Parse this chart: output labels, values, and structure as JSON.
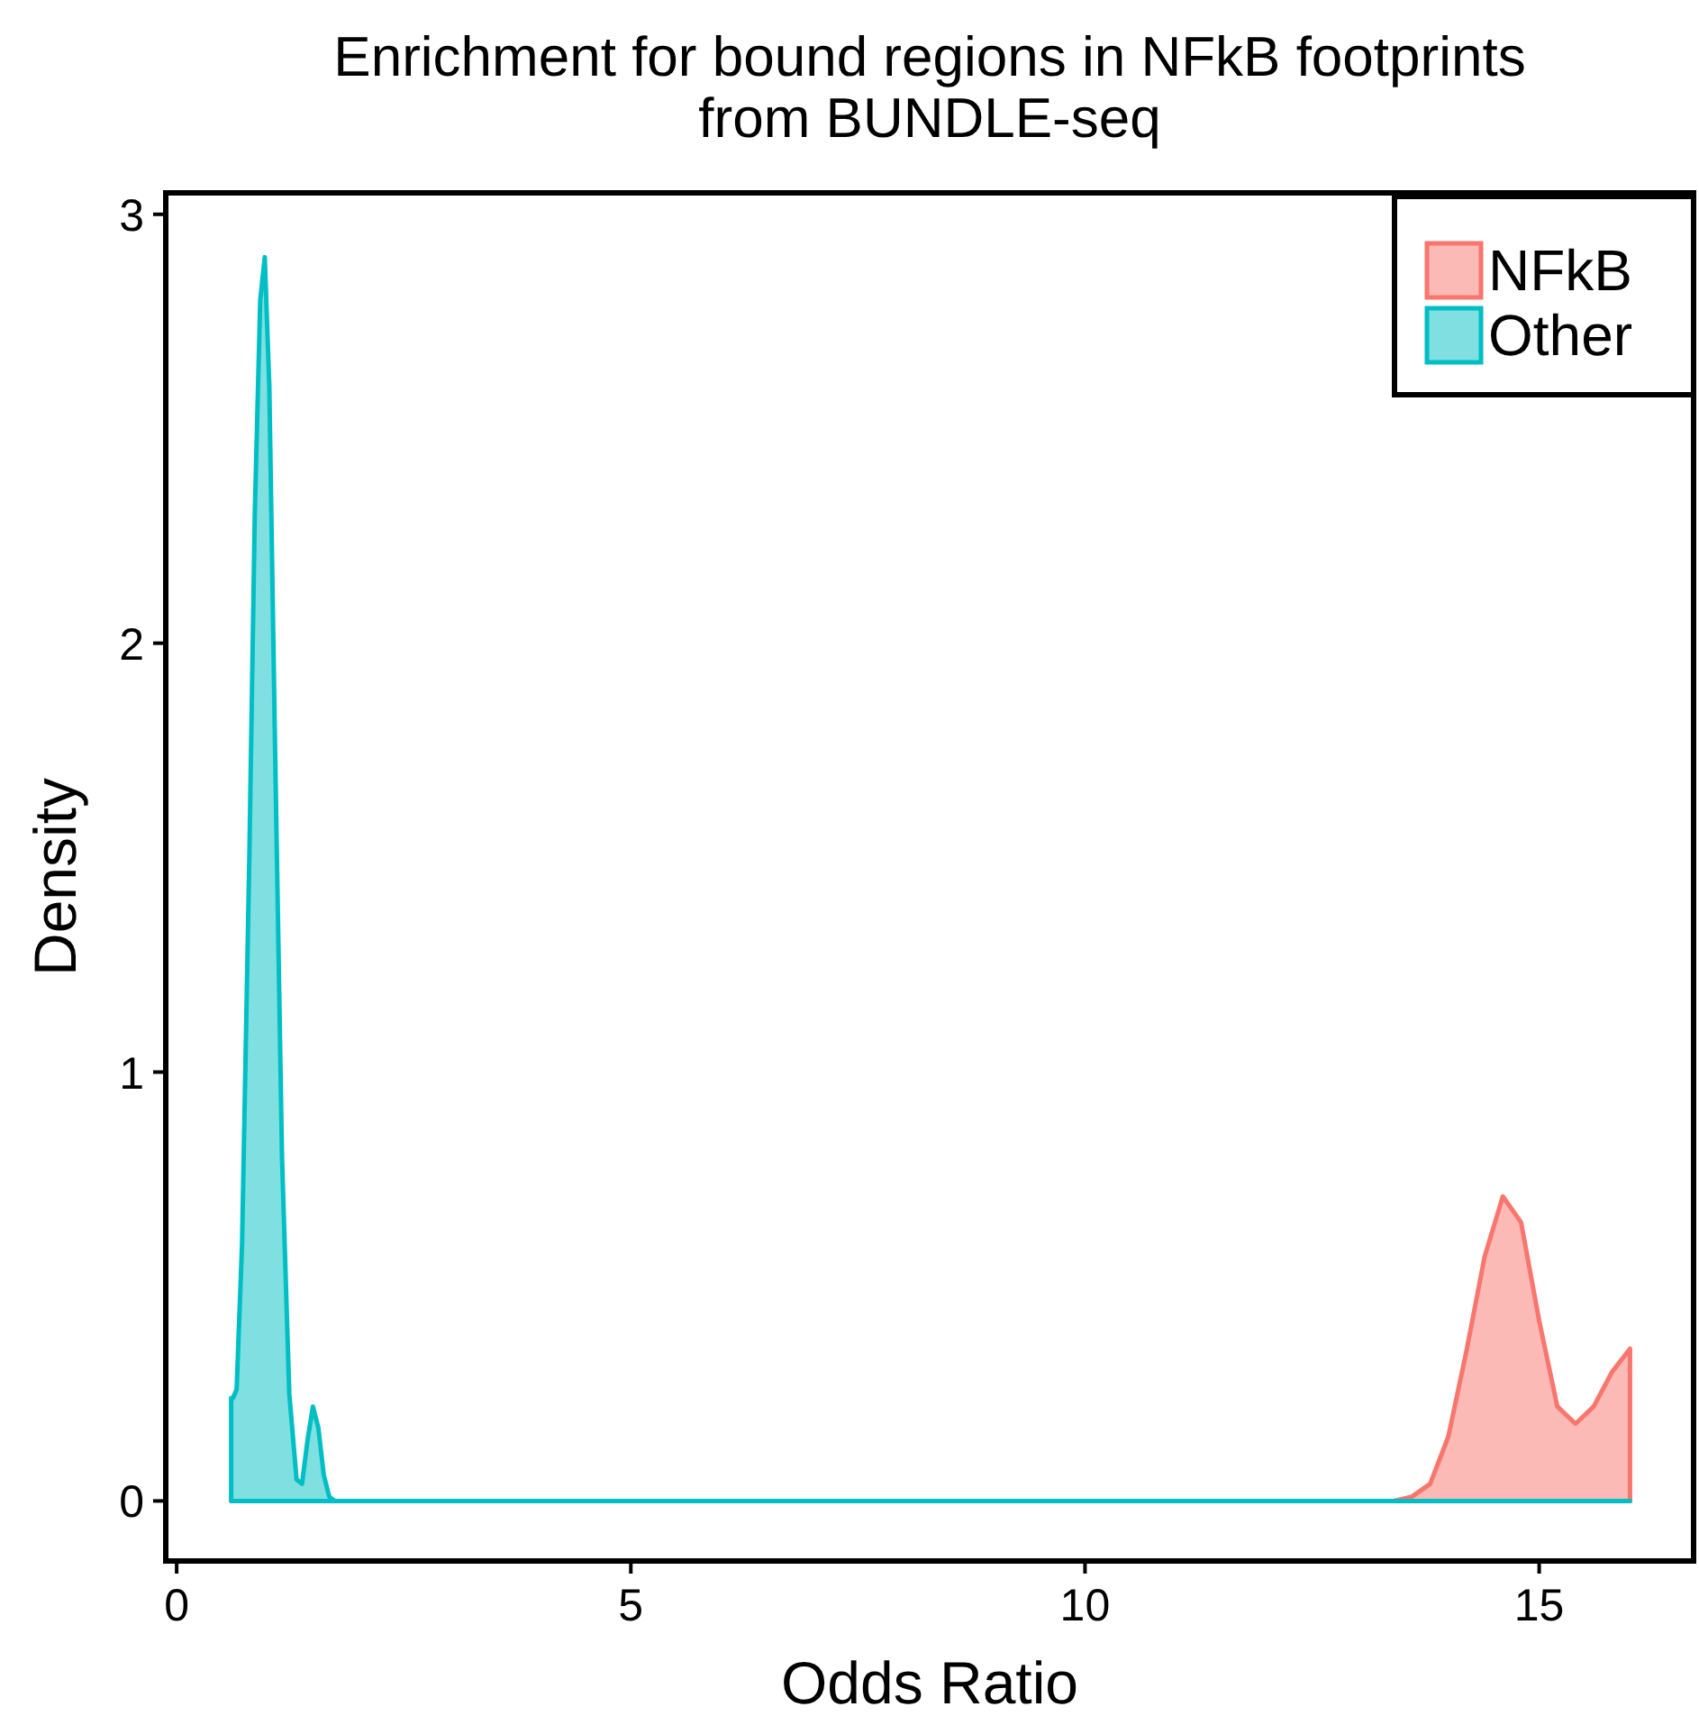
{
  "chart_data": {
    "type": "area",
    "title": "Enrichment for bound regions in NFkB footprints\nfrom BUNDLE-seq",
    "xlabel": "Odds Ratio",
    "ylabel": "Density",
    "xlim": [
      -0.12,
      16.7
    ],
    "ylim": [
      -0.14,
      3.05
    ],
    "xticks": [
      0,
      5,
      10,
      15
    ],
    "yticks": [
      0,
      1,
      2,
      3
    ],
    "legend": "top right",
    "series": [
      {
        "name": "NFkB",
        "color": "#f8766d",
        "x": [
          0.6,
          13.4,
          13.6,
          13.8,
          14.0,
          14.2,
          14.4,
          14.6,
          14.8,
          15.0,
          15.2,
          15.4,
          15.6,
          15.8,
          16.0
        ],
        "values": [
          0,
          0,
          0.01,
          0.04,
          0.15,
          0.35,
          0.57,
          0.71,
          0.65,
          0.42,
          0.22,
          0.18,
          0.22,
          0.3,
          0.355
        ]
      },
      {
        "name": "Other",
        "color": "#00bfc4",
        "x": [
          0.6,
          0.62,
          0.66,
          0.72,
          0.8,
          0.86,
          0.92,
          0.97,
          1.02,
          1.08,
          1.16,
          1.24,
          1.32,
          1.38,
          1.44,
          1.5,
          1.56,
          1.62,
          1.68,
          1.74,
          1.8,
          16.0
        ],
        "values": [
          0.24,
          0.24,
          0.26,
          0.6,
          1.5,
          2.3,
          2.8,
          2.9,
          2.6,
          1.8,
          0.8,
          0.25,
          0.05,
          0.04,
          0.14,
          0.22,
          0.17,
          0.06,
          0.01,
          0,
          0,
          0
        ]
      }
    ]
  }
}
